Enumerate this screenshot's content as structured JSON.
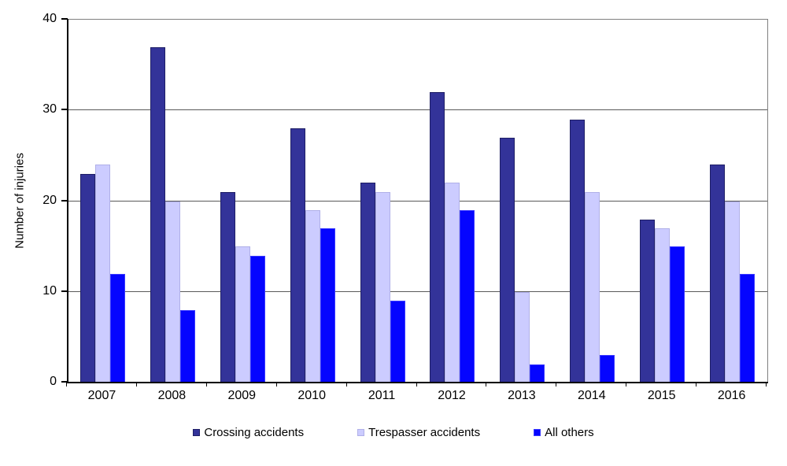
{
  "chart_data": {
    "type": "bar",
    "title": "",
    "ylabel": "Number of injuries",
    "xlabel": "",
    "ylim": [
      0,
      40
    ],
    "yticks": [
      0,
      10,
      20,
      30,
      40
    ],
    "grid": true,
    "legend_position": "bottom",
    "categories": [
      "2007",
      "2008",
      "2009",
      "2010",
      "2011",
      "2012",
      "2013",
      "2014",
      "2015",
      "2016"
    ],
    "series": [
      {
        "name": "Crossing accidents",
        "color": "#333399",
        "border_color": "#1f1f66",
        "values": [
          23,
          37,
          21,
          28,
          22,
          32,
          27,
          29,
          18,
          24
        ]
      },
      {
        "name": "Trespasser accidents",
        "color": "#ccccff",
        "border_color": "#b0b0e8",
        "values": [
          24,
          20,
          15,
          19,
          21,
          22,
          10,
          21,
          17,
          20
        ]
      },
      {
        "name": "All others",
        "color": "#0505ff",
        "border_color": "#3a3aff",
        "values": [
          12,
          8,
          14,
          17,
          9,
          19,
          2,
          3,
          15,
          12
        ]
      }
    ],
    "colors": {
      "axis": "#000000",
      "gridline": "#595959",
      "plot_border": "#808080",
      "background": "#ffffff"
    }
  }
}
